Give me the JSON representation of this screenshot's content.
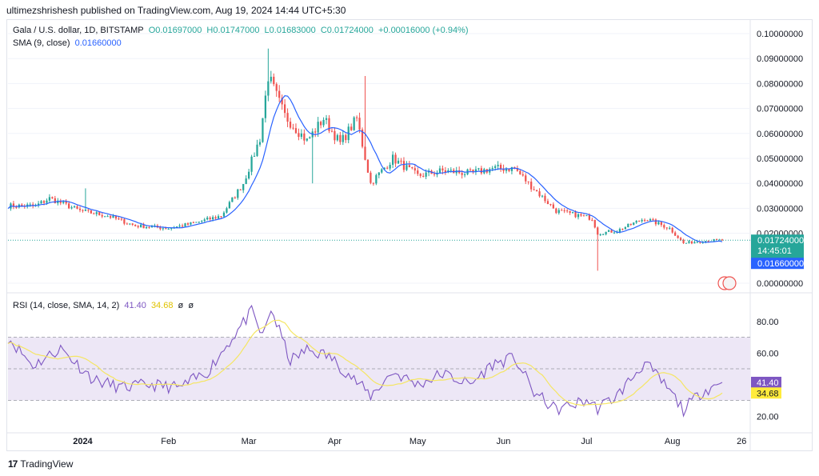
{
  "header": {
    "publisher_line": "ultimezshrishesh published on TradingView.com, Aug 19, 2024 14:44 UTC+5:30"
  },
  "legend": {
    "symbol": "Gala / U.S. dollar, 1D, BITSTAMP",
    "o": "O0.01697000",
    "h": "H0.01747000",
    "l": "L0.01683000",
    "c": "C0.01724000",
    "chg": "+0.00016000 (+0.94%)",
    "sma_label": "SMA (9, close)",
    "sma_value": "0.01660000",
    "rsi_label": "RSI (14, close, SMA, 14, 2)",
    "rsi_value": "41.40",
    "rsi_sma_value": "34.68",
    "rsi_extra1": "ø",
    "rsi_extra2": "ø"
  },
  "price_axis": {
    "ticks": [
      "0.10000000",
      "0.09000000",
      "0.08000000",
      "0.07000000",
      "0.06000000",
      "0.05000000",
      "0.04000000",
      "0.03000000",
      "0.02000000",
      "0.00000000"
    ],
    "tick_values": [
      0.1,
      0.09,
      0.08,
      0.07,
      0.06,
      0.05,
      0.04,
      0.03,
      0.02,
      0.0
    ],
    "last_price_label": "0.01724000",
    "countdown_label": "14:45:01",
    "sma_badge_label": "0.01660000"
  },
  "rsi_axis": {
    "ticks": [
      "80.00",
      "60.00",
      "20.00"
    ],
    "tick_values": [
      80,
      60,
      20
    ],
    "rsi_badge": "41.40",
    "rsi_sma_badge": "34.68"
  },
  "time_axis": {
    "labels": [
      "2024",
      "Feb",
      "Mar",
      "Apr",
      "May",
      "Jun",
      "Jul",
      "Aug",
      "26"
    ]
  },
  "footer": {
    "brand": "TradingView",
    "logo_text": "17"
  },
  "colors": {
    "up": "#26a69a",
    "down": "#ef5350",
    "sma": "#2962ff",
    "rsi": "#7e57c2",
    "rsi_sma": "#f5e663",
    "band": "#ede7f6",
    "last_price": "#26a69a",
    "sma_badge": "#2962ff",
    "rsi_badge": "#7e57c2",
    "rsi_sma_badge": "#ffeb3b"
  },
  "chart_data": [
    {
      "type": "candlestick",
      "title": "Gala / U.S. dollar, 1D, BITSTAMP",
      "ylim": [
        0.0,
        0.1
      ],
      "x_range": [
        "2023-12-05",
        "2024-08-19"
      ],
      "anchors": [
        {
          "date": "2023-12-05",
          "close": 0.031
        },
        {
          "date": "2023-12-15",
          "close": 0.031
        },
        {
          "date": "2023-12-20",
          "close": 0.034
        },
        {
          "date": "2023-12-31",
          "close": 0.029
        },
        {
          "date": "2024-01-10",
          "close": 0.027
        },
        {
          "date": "2024-01-20",
          "close": 0.023
        },
        {
          "date": "2024-02-01",
          "close": 0.022
        },
        {
          "date": "2024-02-10",
          "close": 0.024
        },
        {
          "date": "2024-02-20",
          "close": 0.027
        },
        {
          "date": "2024-02-28",
          "close": 0.04
        },
        {
          "date": "2024-03-05",
          "close": 0.058
        },
        {
          "date": "2024-03-08",
          "close": 0.083
        },
        {
          "date": "2024-03-14",
          "close": 0.067
        },
        {
          "date": "2024-03-22",
          "close": 0.057
        },
        {
          "date": "2024-03-28",
          "close": 0.066
        },
        {
          "date": "2024-04-03",
          "close": 0.056
        },
        {
          "date": "2024-04-09",
          "close": 0.066
        },
        {
          "date": "2024-04-14",
          "close": 0.04
        },
        {
          "date": "2024-04-22",
          "close": 0.05
        },
        {
          "date": "2024-05-01",
          "close": 0.043
        },
        {
          "date": "2024-05-10",
          "close": 0.045
        },
        {
          "date": "2024-05-20",
          "close": 0.044
        },
        {
          "date": "2024-05-28",
          "close": 0.046
        },
        {
          "date": "2024-06-05",
          "close": 0.046
        },
        {
          "date": "2024-06-10",
          "close": 0.04
        },
        {
          "date": "2024-06-20",
          "close": 0.029
        },
        {
          "date": "2024-07-03",
          "close": 0.026
        },
        {
          "date": "2024-07-05",
          "close": 0.02
        },
        {
          "date": "2024-07-12",
          "close": 0.021
        },
        {
          "date": "2024-07-22",
          "close": 0.026
        },
        {
          "date": "2024-07-31",
          "close": 0.022
        },
        {
          "date": "2024-08-05",
          "close": 0.016
        },
        {
          "date": "2024-08-12",
          "close": 0.017
        },
        {
          "date": "2024-08-19",
          "close": 0.01724
        }
      ],
      "notable_wicks": [
        {
          "date": "2024-01-02",
          "high": 0.038
        },
        {
          "date": "2024-03-08",
          "high": 0.094
        },
        {
          "date": "2024-03-24",
          "low": 0.04
        },
        {
          "date": "2024-04-12",
          "high": 0.083
        },
        {
          "date": "2024-07-05",
          "low": 0.005
        }
      ],
      "series": [
        {
          "name": "SMA (9, close)",
          "last_value": 0.0166
        }
      ]
    },
    {
      "type": "line",
      "title": "RSI (14, close, SMA, 14, 2)",
      "ylim": [
        10,
        90
      ],
      "bands": [
        30,
        50,
        70
      ],
      "anchors": [
        {
          "date": "2023-12-05",
          "rsi": 70
        },
        {
          "date": "2023-12-14",
          "rsi": 52
        },
        {
          "date": "2023-12-24",
          "rsi": 63
        },
        {
          "date": "2024-01-05",
          "rsi": 43
        },
        {
          "date": "2024-01-15",
          "rsi": 38
        },
        {
          "date": "2024-01-25",
          "rsi": 40
        },
        {
          "date": "2024-02-05",
          "rsi": 38
        },
        {
          "date": "2024-02-15",
          "rsi": 48
        },
        {
          "date": "2024-02-25",
          "rsi": 72
        },
        {
          "date": "2024-03-02",
          "rsi": 86
        },
        {
          "date": "2024-03-06",
          "rsi": 70
        },
        {
          "date": "2024-03-09",
          "rsi": 88
        },
        {
          "date": "2024-03-16",
          "rsi": 55
        },
        {
          "date": "2024-03-22",
          "rsi": 62
        },
        {
          "date": "2024-03-30",
          "rsi": 58
        },
        {
          "date": "2024-04-07",
          "rsi": 45
        },
        {
          "date": "2024-04-14",
          "rsi": 33
        },
        {
          "date": "2024-04-22",
          "rsi": 48
        },
        {
          "date": "2024-05-01",
          "rsi": 40
        },
        {
          "date": "2024-05-10",
          "rsi": 47
        },
        {
          "date": "2024-05-20",
          "rsi": 40
        },
        {
          "date": "2024-05-28",
          "rsi": 53
        },
        {
          "date": "2024-06-05",
          "rsi": 57
        },
        {
          "date": "2024-06-12",
          "rsi": 35
        },
        {
          "date": "2024-06-20",
          "rsi": 24
        },
        {
          "date": "2024-07-01",
          "rsi": 30
        },
        {
          "date": "2024-07-05",
          "rsi": 25
        },
        {
          "date": "2024-07-12",
          "rsi": 33
        },
        {
          "date": "2024-07-22",
          "rsi": 54
        },
        {
          "date": "2024-07-31",
          "rsi": 36
        },
        {
          "date": "2024-08-05",
          "rsi": 24
        },
        {
          "date": "2024-08-12",
          "rsi": 36
        },
        {
          "date": "2024-08-19",
          "rsi": 41.4
        }
      ],
      "series": [
        {
          "name": "RSI (14, close, SMA, 14, 2)",
          "last_value": 41.4
        },
        {
          "name": "RSI SMA",
          "last_value": 34.68
        }
      ]
    }
  ]
}
